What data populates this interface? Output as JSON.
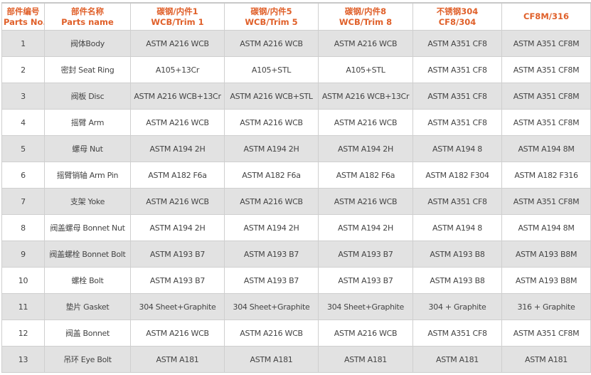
{
  "headers": [
    [
      "部件编号",
      "Parts No."
    ],
    [
      "部件名称",
      "Parts name"
    ],
    [
      "碳钢/内件1",
      "WCB/Trim 1"
    ],
    [
      "碳钢/内件5",
      "WCB/Trim 5"
    ],
    [
      "碳钢/内件8",
      "WCB/Trim 8"
    ],
    [
      "不锈钢304",
      "CF8/304"
    ],
    [
      "CF8M/316",
      ""
    ]
  ],
  "rows": [
    [
      "1",
      "阀体Body",
      "ASTM A216 WCB",
      "ASTM A216 WCB",
      "ASTM A216 WCB",
      "ASTM A351 CF8",
      "ASTM A351 CF8M"
    ],
    [
      "2",
      "密封 Seat Ring",
      "A105+13Cr",
      "A105+STL",
      "A105+STL",
      "ASTM A351 CF8",
      "ASTM A351 CF8M"
    ],
    [
      "3",
      "阀板 Disc",
      "ASTM A216 WCB+13Cr",
      "ASTM A216 WCB+STL",
      "ASTM A216 WCB+13Cr",
      "ASTM A351 CF8",
      "ASTM A351 CF8M"
    ],
    [
      "4",
      "摇臂 Arm",
      "ASTM A216 WCB",
      "ASTM A216 WCB",
      "ASTM A216 WCB",
      "ASTM A351 CF8",
      "ASTM A351 CF8M"
    ],
    [
      "5",
      "螺母 Nut",
      "ASTM A194 2H",
      "ASTM A194 2H",
      "ASTM A194 2H",
      "ASTM A194 8",
      "ASTM A194 8M"
    ],
    [
      "6",
      "摇臂销轴 Arm Pin",
      "ASTM A182 F6a",
      "ASTM A182 F6a",
      "ASTM A182 F6a",
      "ASTM A182 F304",
      "ASTM A182 F316"
    ],
    [
      "7",
      "支架 Yoke",
      "ASTM A216 WCB",
      "ASTM A216 WCB",
      "ASTM A216 WCB",
      "ASTM A351 CF8",
      "ASTM A351 CF8M"
    ],
    [
      "8",
      "阀盖螺母 Bonnet Nut",
      "ASTM A194 2H",
      "ASTM A194 2H",
      "ASTM A194 2H",
      "ASTM A194 8",
      "ASTM A194 8M"
    ],
    [
      "9",
      "阀盖螺栓 Bonnet Bolt",
      "ASTM A193 B7",
      "ASTM A193 B7",
      "ASTM A193 B7",
      "ASTM A193 B8",
      "ASTM A193 B8M"
    ],
    [
      "10",
      "螺栓 Bolt",
      "ASTM A193 B7",
      "ASTM A193 B7",
      "ASTM A193 B7",
      "ASTM A193 B8",
      "ASTM A193 B8M"
    ],
    [
      "11",
      "垫片 Gasket",
      "304 Sheet+Graphite",
      "304 Sheet+Graphite",
      "304 Sheet+Graphite",
      "304 + Graphite",
      "316 + Graphite"
    ],
    [
      "12",
      "阀盖 Bonnet",
      "ASTM A216 WCB",
      "ASTM A216 WCB",
      "ASTM A216 WCB",
      "ASTM A351 CF8",
      "ASTM A351 CF8M"
    ],
    [
      "13",
      "吊环 Eye Bolt",
      "ASTM A181",
      "ASTM A181",
      "ASTM A181",
      "ASTM A181",
      "ASTM A181"
    ]
  ],
  "colors": {
    "header_text": "#e0602a",
    "stripe": "#e2e2e2",
    "body_text": "#444444"
  }
}
